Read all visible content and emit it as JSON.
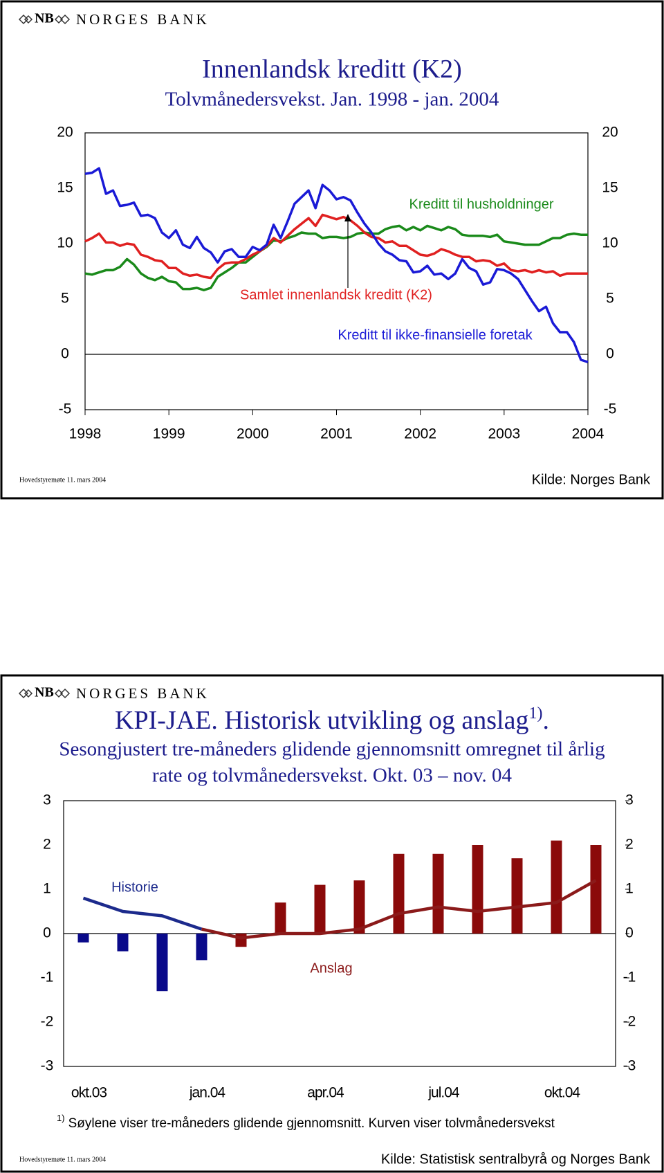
{
  "chart_data": [
    {
      "type": "line",
      "logo_mark": "NB",
      "logo_name": "NORGES BANK",
      "title": "Innenlandsk kreditt (K2)",
      "subtitle": [
        "Tolvmånedersvekst. Jan. 1998 - jan. 2004"
      ],
      "categories": [
        "1998",
        null,
        null,
        null,
        null,
        null,
        null,
        null,
        null,
        null,
        null,
        null,
        "1999",
        null,
        null,
        null,
        null,
        null,
        null,
        null,
        null,
        null,
        null,
        null,
        "2000",
        null,
        null,
        null,
        null,
        null,
        null,
        null,
        null,
        null,
        null,
        null,
        "2001",
        null,
        null,
        null,
        null,
        null,
        null,
        null,
        null,
        null,
        null,
        null,
        "2002",
        null,
        null,
        null,
        null,
        null,
        null,
        null,
        null,
        null,
        null,
        null,
        "2003",
        null,
        null,
        null,
        null,
        null,
        null,
        null,
        null,
        null,
        null,
        null,
        "2004"
      ],
      "series": [
        {
          "name": "Kreditt til husholdninger",
          "color": "#1a8a1a",
          "values": [
            7.3,
            7.2,
            7.4,
            7.6,
            7.6,
            7.9,
            8.6,
            8.1,
            7.3,
            6.9,
            6.7,
            7.0,
            6.6,
            6.5,
            5.9,
            5.9,
            6.0,
            5.8,
            6.0,
            7.0,
            7.4,
            7.8,
            8.3,
            8.3,
            8.8,
            9.3,
            9.7,
            10.3,
            10.2,
            10.5,
            10.7,
            11.0,
            10.9,
            10.9,
            10.5,
            10.6,
            10.6,
            10.5,
            10.6,
            10.9,
            11.0,
            10.9,
            10.9,
            11.3,
            11.5,
            11.6,
            11.2,
            11.5,
            11.2,
            11.6,
            11.4,
            11.2,
            11.5,
            11.3,
            10.8,
            10.7,
            10.7,
            10.7,
            10.6,
            10.8,
            10.2,
            10.1,
            10.0,
            9.9,
            9.9,
            9.9,
            10.2,
            10.5,
            10.5,
            10.8,
            10.9,
            10.8,
            10.8
          ]
        },
        {
          "name": "Samlet innenlandsk kreditt (K2)",
          "color": "#e02020",
          "values": [
            10.2,
            10.5,
            10.9,
            10.1,
            10.1,
            9.8,
            10.0,
            9.9,
            9.0,
            8.8,
            8.5,
            8.4,
            7.8,
            7.8,
            7.3,
            7.1,
            7.2,
            7.0,
            6.9,
            7.7,
            8.2,
            8.3,
            8.3,
            8.6,
            9.0,
            9.3,
            9.8,
            10.5,
            10.1,
            10.7,
            11.3,
            11.8,
            12.3,
            11.6,
            12.6,
            12.4,
            12.2,
            12.4,
            12.1,
            11.6,
            11.0,
            10.6,
            10.5,
            10.1,
            10.2,
            9.8,
            9.8,
            9.4,
            9.0,
            8.9,
            9.1,
            9.5,
            9.3,
            9.0,
            8.8,
            8.8,
            8.4,
            8.5,
            8.4,
            8.0,
            8.2,
            7.6,
            7.5,
            7.6,
            7.4,
            7.6,
            7.4,
            7.5,
            7.1,
            7.3,
            7.3,
            7.3,
            7.3
          ]
        },
        {
          "name": "Kreditt til ikke-finansielle foretak",
          "color": "#1a1ad6",
          "values": [
            16.3,
            16.4,
            16.8,
            14.5,
            14.8,
            13.4,
            13.5,
            13.7,
            12.5,
            12.6,
            12.3,
            11.0,
            10.5,
            11.2,
            9.9,
            9.6,
            10.6,
            9.6,
            9.2,
            8.3,
            9.3,
            9.5,
            8.8,
            8.8,
            9.7,
            9.4,
            9.9,
            11.7,
            10.5,
            12.0,
            13.6,
            14.2,
            14.8,
            13.2,
            15.3,
            14.8,
            14.0,
            14.2,
            13.9,
            12.8,
            11.8,
            11.0,
            10.0,
            9.3,
            9.0,
            8.5,
            8.4,
            7.4,
            7.5,
            8.0,
            7.2,
            7.3,
            6.8,
            7.3,
            8.6,
            7.8,
            7.5,
            6.3,
            6.5,
            7.7,
            7.6,
            7.3,
            6.8,
            5.8,
            4.8,
            3.9,
            4.3,
            2.8,
            2.0,
            2.0,
            1.1,
            -0.5,
            -0.7
          ]
        }
      ],
      "ylim": [
        -5,
        20
      ],
      "yticks": [
        -5,
        0,
        5,
        10,
        15,
        20
      ],
      "meeting": "Hovedstyremøte 11. mars 2004",
      "source": "Kilde: Norges Bank"
    },
    {
      "type": "combo",
      "logo_mark": "NB",
      "logo_name": "NORGES BANK",
      "title": "KPI-JAE. Historisk utvikling og anslag",
      "title_superscript": "1)",
      "title_end": ".",
      "subtitle": [
        "Sesongjustert tre-måneders glidende gjennomsnitt omregnet til årlig",
        "rate og tolvmånedersvekst. Okt. 03 – nov. 04"
      ],
      "categories": [
        "okt.03",
        null,
        null,
        "jan.04",
        null,
        null,
        "apr.04",
        null,
        null,
        "jul.04",
        null,
        null,
        "okt.04",
        null
      ],
      "series": [
        {
          "name": "Historie",
          "color": "#1c2a8c",
          "bar_color": "#0a0a8a",
          "bar_values": [
            -0.2,
            -0.4,
            -1.3,
            -0.6,
            null,
            null,
            null,
            null,
            null,
            null,
            null,
            null,
            null,
            null
          ],
          "values": [
            0.8,
            0.5,
            0.4,
            0.1,
            null,
            null,
            null,
            null,
            null,
            null,
            null,
            null,
            null,
            null
          ]
        },
        {
          "name": "Anslag",
          "color": "#8b1a1a",
          "bar_color": "#8b0a0a",
          "bar_values": [
            null,
            null,
            null,
            null,
            -0.3,
            0.7,
            1.1,
            1.2,
            1.8,
            1.8,
            2.0,
            1.7,
            2.1,
            2.0
          ],
          "values": [
            null,
            null,
            null,
            0.1,
            -0.1,
            0.0,
            0.0,
            0.1,
            0.45,
            0.6,
            0.5,
            0.6,
            0.7,
            1.2
          ]
        }
      ],
      "ylim": [
        -3,
        3
      ],
      "yticks": [
        -3,
        -2,
        -1,
        0,
        1,
        2,
        3
      ],
      "footnote_marker": "1)",
      "footnote": "Søylene viser tre-måneders glidende gjennomsnitt. Kurven viser tolvmånedersvekst",
      "meeting": "Hovedstyremøte 11. mars 2004",
      "source": "Kilde: Statistisk sentralbyrå og Norges Bank"
    }
  ]
}
